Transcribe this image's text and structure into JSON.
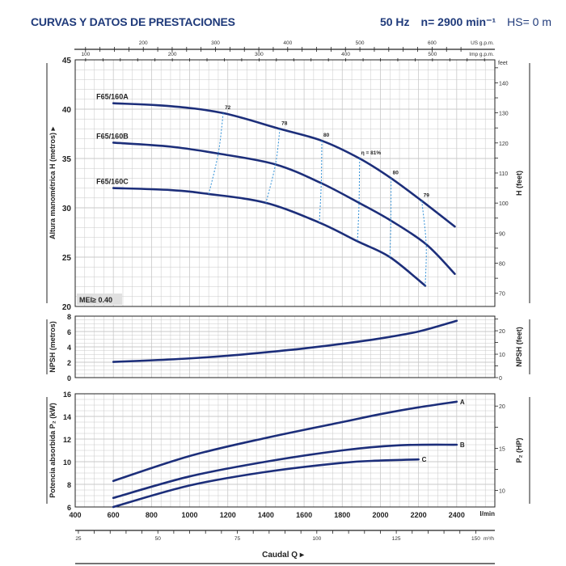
{
  "header": {
    "title": "CURVAS Y DATOS DE PRESTACIONES",
    "freq": "50 Hz",
    "speed": "n= 2900 min⁻¹",
    "hs": "HS= 0 m"
  },
  "colors": {
    "curve": "#1c2e7a",
    "efficiency": "#2f8fd6",
    "grid": "#c8c8c8",
    "text": "#1f3a7a"
  },
  "chart_data": [
    {
      "type": "line",
      "ylabel": "Altura manométrica H (metros)",
      "ylabel_right": "H (feet)",
      "xlim": [
        400,
        2600
      ],
      "ylim": [
        20,
        45
      ],
      "yticks": [
        20,
        25,
        30,
        35,
        40,
        45
      ],
      "yticks_right": [
        70,
        80,
        90,
        100,
        110,
        120,
        130,
        140
      ],
      "right_unit": "feet",
      "annotation": "MEI≥ 0.40",
      "series": [
        {
          "name": "F65/160A",
          "x": [
            600,
            900,
            1176,
            1473,
            1693,
            1891,
            2056,
            2217,
            2390
          ],
          "y": [
            40.6,
            40.3,
            39.6,
            38.0,
            36.8,
            35.0,
            33.0,
            30.7,
            28.1
          ]
        },
        {
          "name": "F65/160B",
          "x": [
            600,
            900,
            1150,
            1450,
            1690,
            1888,
            2055,
            2240,
            2390
          ],
          "y": [
            36.6,
            36.2,
            35.5,
            34.4,
            32.5,
            30.5,
            28.7,
            26.3,
            23.3
          ]
        },
        {
          "name": "F65/160C",
          "x": [
            600,
            900,
            1100,
            1400,
            1680,
            1880,
            2050,
            2235
          ],
          "y": [
            32.0,
            31.8,
            31.4,
            30.5,
            28.5,
            26.6,
            25.0,
            22.1
          ]
        }
      ],
      "efficiency": [
        {
          "label": "72",
          "x": [
            1176,
            1150,
            1100
          ],
          "y": [
            39.6,
            35.5,
            31.4
          ]
        },
        {
          "label": "78",
          "x": [
            1473,
            1450,
            1400
          ],
          "y": [
            38.0,
            34.4,
            30.5
          ]
        },
        {
          "label": "80",
          "x": [
            1693,
            1690,
            1680
          ],
          "y": [
            36.8,
            32.5,
            28.5
          ]
        },
        {
          "label": "η = 81%",
          "x": [
            1891,
            1888,
            1880
          ],
          "y": [
            35.0,
            30.5,
            26.6
          ]
        },
        {
          "label": "80",
          "x": [
            2056,
            2055,
            2050
          ],
          "y": [
            33.0,
            28.7,
            25.0
          ]
        },
        {
          "label": "79",
          "x": [
            2217,
            2240,
            2235
          ],
          "y": [
            30.7,
            26.3,
            22.1
          ]
        }
      ]
    },
    {
      "type": "line",
      "ylabel": "NPSH (metros)",
      "ylabel_right": "NPSH (feet)",
      "xlim": [
        400,
        2600
      ],
      "ylim": [
        0,
        8
      ],
      "yticks": [
        0,
        2,
        4,
        6,
        8
      ],
      "yticks_right": [
        0,
        10,
        20
      ],
      "series": [
        {
          "x": [
            600,
            800,
            1000,
            1200,
            1400,
            1600,
            1800,
            2000,
            2200,
            2400
          ],
          "y": [
            2.05,
            2.25,
            2.5,
            2.85,
            3.3,
            3.8,
            4.4,
            5.1,
            6.0,
            7.4
          ]
        }
      ]
    },
    {
      "type": "line",
      "ylabel": "Potencia absorbida P₂ (kW)",
      "ylabel_right": "P₂ (HP)",
      "xlim": [
        400,
        2600
      ],
      "ylim": [
        6,
        16
      ],
      "yticks": [
        6,
        8,
        10,
        12,
        14,
        16
      ],
      "yticks_right": [
        10,
        15,
        20
      ],
      "series": [
        {
          "name": "A",
          "x": [
            600,
            1000,
            1400,
            1800,
            2000,
            2200,
            2400
          ],
          "y": [
            8.3,
            10.5,
            12.1,
            13.5,
            14.2,
            14.8,
            15.3
          ]
        },
        {
          "name": "B",
          "x": [
            600,
            1000,
            1400,
            1800,
            2100,
            2400
          ],
          "y": [
            6.8,
            8.7,
            10.0,
            11.0,
            11.45,
            11.5
          ]
        },
        {
          "name": "C",
          "x": [
            600,
            1000,
            1400,
            1800,
            2000,
            2200
          ],
          "y": [
            6.0,
            7.9,
            9.1,
            9.9,
            10.1,
            10.2
          ]
        }
      ]
    }
  ],
  "axes": {
    "xlabel": "Caudal Q",
    "lmin_unit": "l/min",
    "lmin_ticks": [
      400,
      600,
      800,
      1000,
      1200,
      1400,
      1600,
      1800,
      2000,
      2200,
      2400
    ],
    "m3h_unit": "m³/h",
    "m3h_ticks": [
      25,
      50,
      75,
      100,
      125,
      150
    ],
    "usgpm_unit": "US g.p.m.",
    "usgpm_ticks": [
      200,
      300,
      400,
      500,
      600
    ],
    "impgpm_unit": "Imp g.p.m.",
    "impgpm_ticks": [
      100,
      200,
      300,
      400,
      500
    ]
  }
}
